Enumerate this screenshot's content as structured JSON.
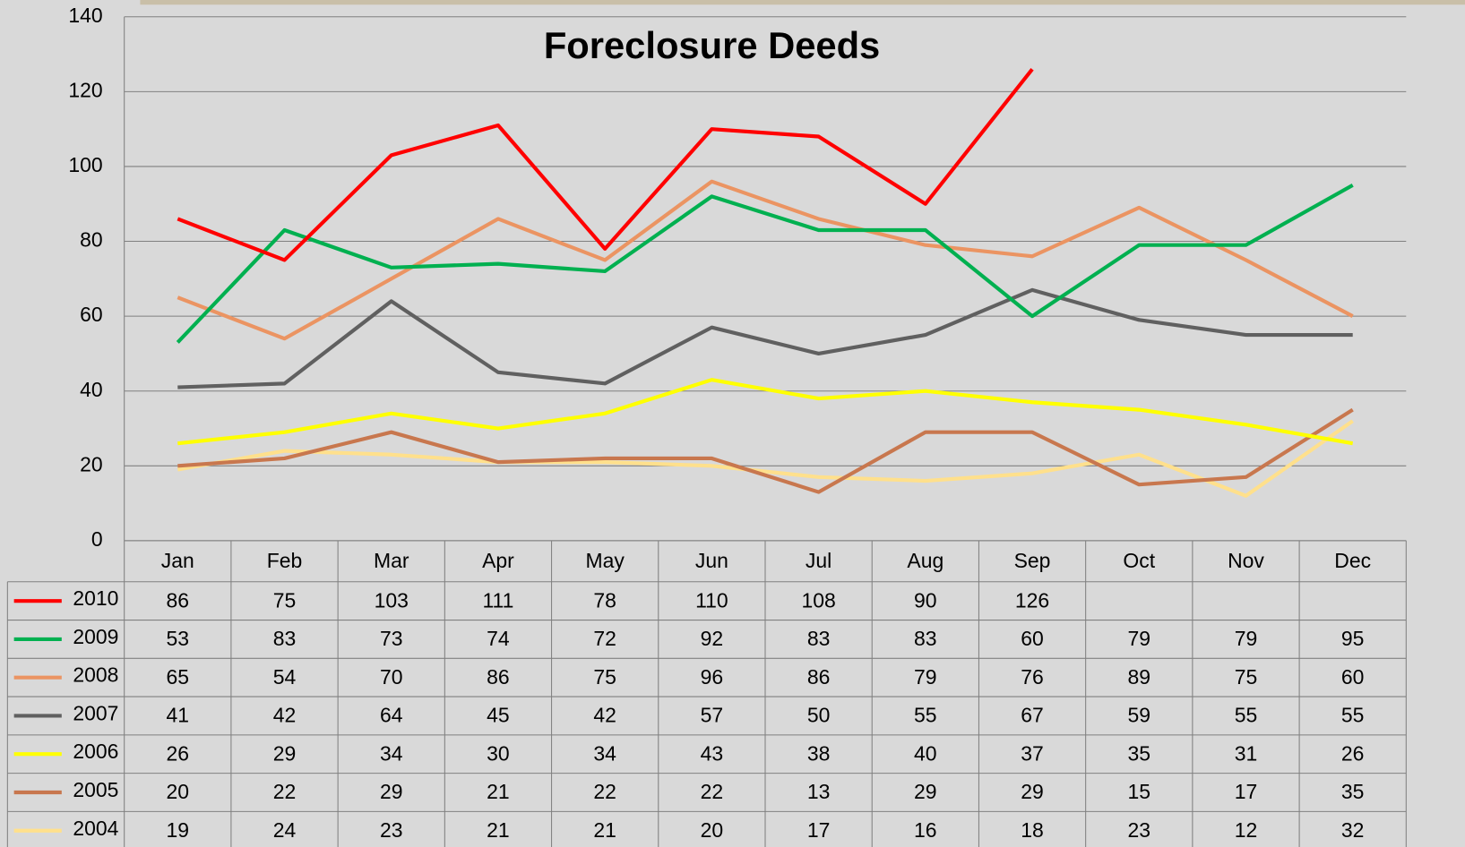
{
  "chart_data": {
    "type": "line",
    "title": "Foreclosure Deeds",
    "categories": [
      "Jan",
      "Feb",
      "Mar",
      "Apr",
      "May",
      "Jun",
      "Jul",
      "Aug",
      "Sep",
      "Oct",
      "Nov",
      "Dec"
    ],
    "ylim": [
      0,
      140
    ],
    "yticks": [
      0,
      20,
      40,
      60,
      80,
      100,
      120,
      140
    ],
    "grid": true,
    "data_table": true,
    "series": [
      {
        "name": "2010",
        "color": "#ff0000",
        "values": [
          86,
          75,
          103,
          111,
          78,
          110,
          108,
          90,
          126,
          null,
          null,
          null
        ]
      },
      {
        "name": "2009",
        "color": "#00b050",
        "values": [
          53,
          83,
          73,
          74,
          72,
          92,
          83,
          83,
          60,
          79,
          79,
          95
        ]
      },
      {
        "name": "2008",
        "color": "#eb9462",
        "values": [
          65,
          54,
          70,
          86,
          75,
          96,
          86,
          79,
          76,
          89,
          75,
          60
        ]
      },
      {
        "name": "2007",
        "color": "#606060",
        "values": [
          41,
          42,
          64,
          45,
          42,
          57,
          50,
          55,
          67,
          59,
          55,
          55
        ]
      },
      {
        "name": "2006",
        "color": "#ffff00",
        "values": [
          26,
          29,
          34,
          30,
          34,
          43,
          38,
          40,
          37,
          35,
          31,
          26
        ]
      },
      {
        "name": "2005",
        "color": "#c8774e",
        "values": [
          20,
          22,
          29,
          21,
          22,
          22,
          13,
          29,
          29,
          15,
          17,
          35
        ]
      },
      {
        "name": "2004",
        "color": "#ffe08c",
        "values": [
          19,
          24,
          23,
          21,
          21,
          20,
          17,
          16,
          18,
          23,
          12,
          32
        ]
      }
    ]
  }
}
